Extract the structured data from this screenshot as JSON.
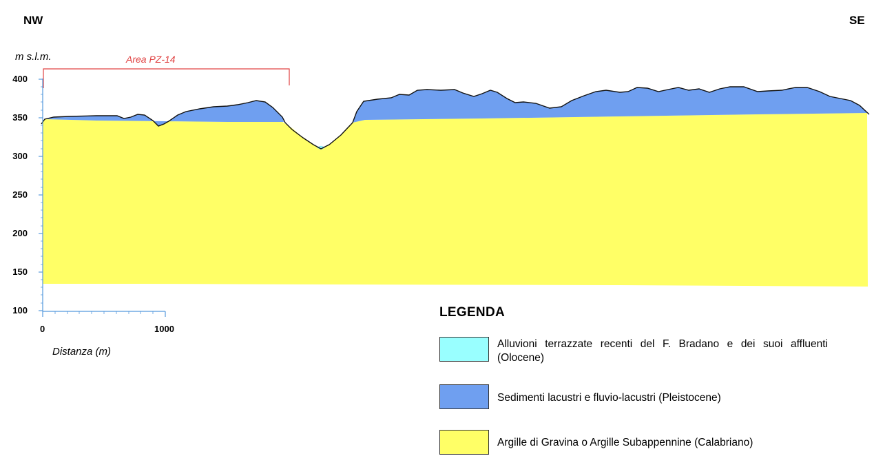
{
  "section": {
    "dir_left": "NW",
    "dir_right": "SE",
    "y_unit": "m s.l.m.",
    "y_ticks": [
      "400",
      "350",
      "300",
      "250",
      "200",
      "150",
      "100"
    ],
    "x_ticks": [
      "0",
      "1000"
    ],
    "x_label": "Distanza (m)",
    "area_label": "Area PZ-14"
  },
  "legend": {
    "title": "LEGENDA",
    "items": [
      {
        "text": "Alluvioni terrazzate recenti del F. Bradano e dei suoi affluenti (Olocene)",
        "color": "#99ffff"
      },
      {
        "text": "Sedimenti lacustri e fluvio-lacustri (Pleistocene)",
        "color": "#6f9ff0"
      },
      {
        "text": "Argille di Gravina o Argille Subappennine (Calabriano)",
        "color": "#ffff66"
      }
    ]
  },
  "colors": {
    "alluvium": "#99ffff",
    "lacustrine": "#6f9ff0",
    "clay": "#ffff66",
    "area_bracket": "#e04040",
    "axis": "#5599dd",
    "profile_line": "#111111"
  }
}
